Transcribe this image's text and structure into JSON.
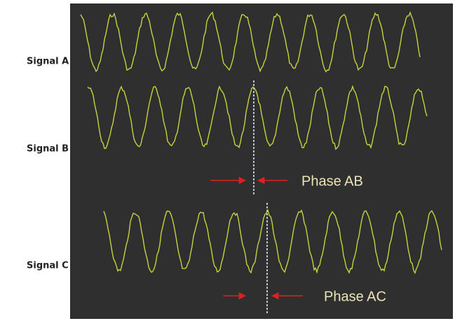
{
  "signals": [
    {
      "label": "Signal A"
    },
    {
      "label": "Signal B"
    },
    {
      "label": "Signal C"
    }
  ],
  "phases": [
    {
      "label": "Phase AB"
    },
    {
      "label": "Phase AC"
    }
  ]
}
